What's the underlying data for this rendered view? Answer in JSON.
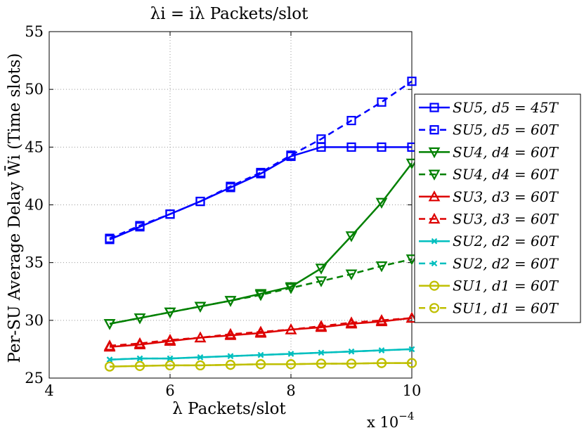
{
  "chart_data": {
    "type": "line",
    "title": "λi = iλ Packets/slot",
    "xlabel": "λ Packets/slot",
    "ylabel": "Per-SU Average Delay W̄i (Time slots)",
    "x_multiplier": "x 10",
    "x_multiplier_exp": "−4",
    "xlim": [
      4,
      10
    ],
    "ylim": [
      25,
      55
    ],
    "xticks": [
      4,
      6,
      8,
      10
    ],
    "yticks": [
      25,
      30,
      35,
      40,
      45,
      50,
      55
    ],
    "grid": true,
    "legend_position": "right",
    "x": [
      5,
      5.5,
      6,
      6.5,
      7,
      7.5,
      8,
      8.5,
      9,
      9.5,
      10
    ],
    "series": [
      {
        "name": "SU5, d5 = 45T",
        "color": "#0000ff",
        "style": "solid",
        "marker": "square",
        "values": [
          37.0,
          38.1,
          39.2,
          40.3,
          41.5,
          42.7,
          44.2,
          45.0,
          45.0,
          45.0,
          45.0
        ]
      },
      {
        "name": "SU5, d5 = 60T",
        "color": "#0000ff",
        "style": "dashed",
        "marker": "square",
        "values": [
          37.1,
          38.2,
          39.2,
          40.3,
          41.6,
          42.8,
          44.3,
          45.7,
          47.3,
          48.9,
          50.7
        ]
      },
      {
        "name": "SU4, d4 = 60T",
        "color": "#008000",
        "style": "solid",
        "marker": "triangle-down",
        "values": [
          29.7,
          30.2,
          30.7,
          31.2,
          31.7,
          32.3,
          32.9,
          34.5,
          37.3,
          40.2,
          43.6
        ]
      },
      {
        "name": "SU4, d4 = 60T",
        "color": "#008000",
        "style": "dashed",
        "marker": "triangle-down",
        "values": [
          29.7,
          30.2,
          30.7,
          31.2,
          31.7,
          32.2,
          32.8,
          33.4,
          34.0,
          34.7,
          35.3
        ]
      },
      {
        "name": "SU3, d3 = 60T",
        "color": "#dd0000",
        "style": "solid",
        "marker": "triangle-up",
        "values": [
          27.7,
          27.9,
          28.2,
          28.5,
          28.7,
          28.9,
          29.2,
          29.4,
          29.7,
          29.9,
          30.2
        ]
      },
      {
        "name": "SU3, d3 = 60T",
        "color": "#dd0000",
        "style": "dashed",
        "marker": "triangle-up",
        "values": [
          27.8,
          28.0,
          28.3,
          28.5,
          28.8,
          29.0,
          29.2,
          29.5,
          29.8,
          30.0,
          30.2
        ]
      },
      {
        "name": "SU2, d2 = 60T",
        "color": "#00bfbf",
        "style": "solid",
        "marker": "x",
        "values": [
          26.6,
          26.7,
          26.7,
          26.8,
          26.9,
          27.0,
          27.1,
          27.2,
          27.3,
          27.4,
          27.5
        ]
      },
      {
        "name": "SU2, d2 = 60T",
        "color": "#00bfbf",
        "style": "dashed",
        "marker": "x",
        "values": [
          26.6,
          26.7,
          26.7,
          26.8,
          26.9,
          27.0,
          27.1,
          27.2,
          27.3,
          27.4,
          27.5
        ]
      },
      {
        "name": "SU1, d1 = 60T",
        "color": "#bfbf00",
        "style": "solid",
        "marker": "circle",
        "values": [
          26.0,
          26.05,
          26.1,
          26.1,
          26.15,
          26.2,
          26.2,
          26.25,
          26.25,
          26.3,
          26.3
        ]
      },
      {
        "name": "SU1, d1 = 60T",
        "color": "#bfbf00",
        "style": "dashed",
        "marker": "circle",
        "values": [
          26.0,
          26.05,
          26.1,
          26.1,
          26.15,
          26.2,
          26.2,
          26.25,
          26.25,
          26.3,
          26.3
        ]
      }
    ]
  }
}
